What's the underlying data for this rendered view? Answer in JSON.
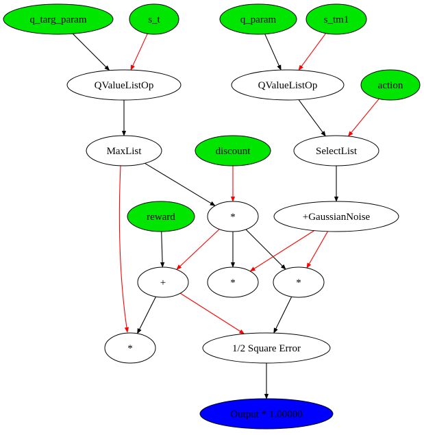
{
  "colors": {
    "input_fill": "#00e600",
    "op_fill": "#ffffff",
    "output_fill": "#0000ff",
    "edge_black": "#000000",
    "edge_red": "#ff0000"
  },
  "nodes": [
    {
      "id": "q_targ_param",
      "label": "q_targ_param",
      "kind": "input"
    },
    {
      "id": "s_t",
      "label": "s_t",
      "kind": "input"
    },
    {
      "id": "q_param",
      "label": "q_param",
      "kind": "input"
    },
    {
      "id": "s_tm1",
      "label": "s_tm1",
      "kind": "input"
    },
    {
      "id": "qvl1",
      "label": "QValueListOp",
      "kind": "op"
    },
    {
      "id": "qvl2",
      "label": "QValueListOp",
      "kind": "op"
    },
    {
      "id": "action",
      "label": "action",
      "kind": "input"
    },
    {
      "id": "maxlist",
      "label": "MaxList",
      "kind": "op"
    },
    {
      "id": "discount",
      "label": "discount",
      "kind": "input"
    },
    {
      "id": "selectlist",
      "label": "SelectList",
      "kind": "op"
    },
    {
      "id": "reward",
      "label": "reward",
      "kind": "input"
    },
    {
      "id": "mul1",
      "label": "*",
      "kind": "op"
    },
    {
      "id": "noise",
      "label": "+GaussianNoise",
      "kind": "op"
    },
    {
      "id": "plus",
      "label": "+",
      "kind": "op"
    },
    {
      "id": "mul2",
      "label": "*",
      "kind": "op"
    },
    {
      "id": "mul3",
      "label": "*",
      "kind": "op"
    },
    {
      "id": "mul4",
      "label": "*",
      "kind": "op"
    },
    {
      "id": "sqerr",
      "label": "1/2 Square Error",
      "kind": "op"
    },
    {
      "id": "output",
      "label": "Output * 1.00000",
      "kind": "output"
    }
  ],
  "edges": [
    {
      "from": "q_targ_param",
      "to": "qvl1",
      "color": "black"
    },
    {
      "from": "s_t",
      "to": "qvl1",
      "color": "red"
    },
    {
      "from": "q_param",
      "to": "qvl2",
      "color": "black"
    },
    {
      "from": "s_tm1",
      "to": "qvl2",
      "color": "red"
    },
    {
      "from": "qvl1",
      "to": "maxlist",
      "color": "black"
    },
    {
      "from": "qvl2",
      "to": "selectlist",
      "color": "black"
    },
    {
      "from": "action",
      "to": "selectlist",
      "color": "red"
    },
    {
      "from": "maxlist",
      "to": "mul1",
      "color": "black"
    },
    {
      "from": "discount",
      "to": "mul1",
      "color": "red"
    },
    {
      "from": "maxlist",
      "to": "mul4",
      "color": "red"
    },
    {
      "from": "selectlist",
      "to": "noise",
      "color": "black"
    },
    {
      "from": "reward",
      "to": "plus",
      "color": "black"
    },
    {
      "from": "mul1",
      "to": "plus",
      "color": "red"
    },
    {
      "from": "mul1",
      "to": "mul2",
      "color": "black"
    },
    {
      "from": "mul1",
      "to": "mul3",
      "color": "black"
    },
    {
      "from": "noise",
      "to": "mul2",
      "color": "red"
    },
    {
      "from": "noise",
      "to": "mul3",
      "color": "red"
    },
    {
      "from": "plus",
      "to": "mul4",
      "color": "black"
    },
    {
      "from": "plus",
      "to": "sqerr",
      "color": "red"
    },
    {
      "from": "mul3",
      "to": "sqerr",
      "color": "black"
    },
    {
      "from": "sqerr",
      "to": "output",
      "color": "black"
    }
  ]
}
